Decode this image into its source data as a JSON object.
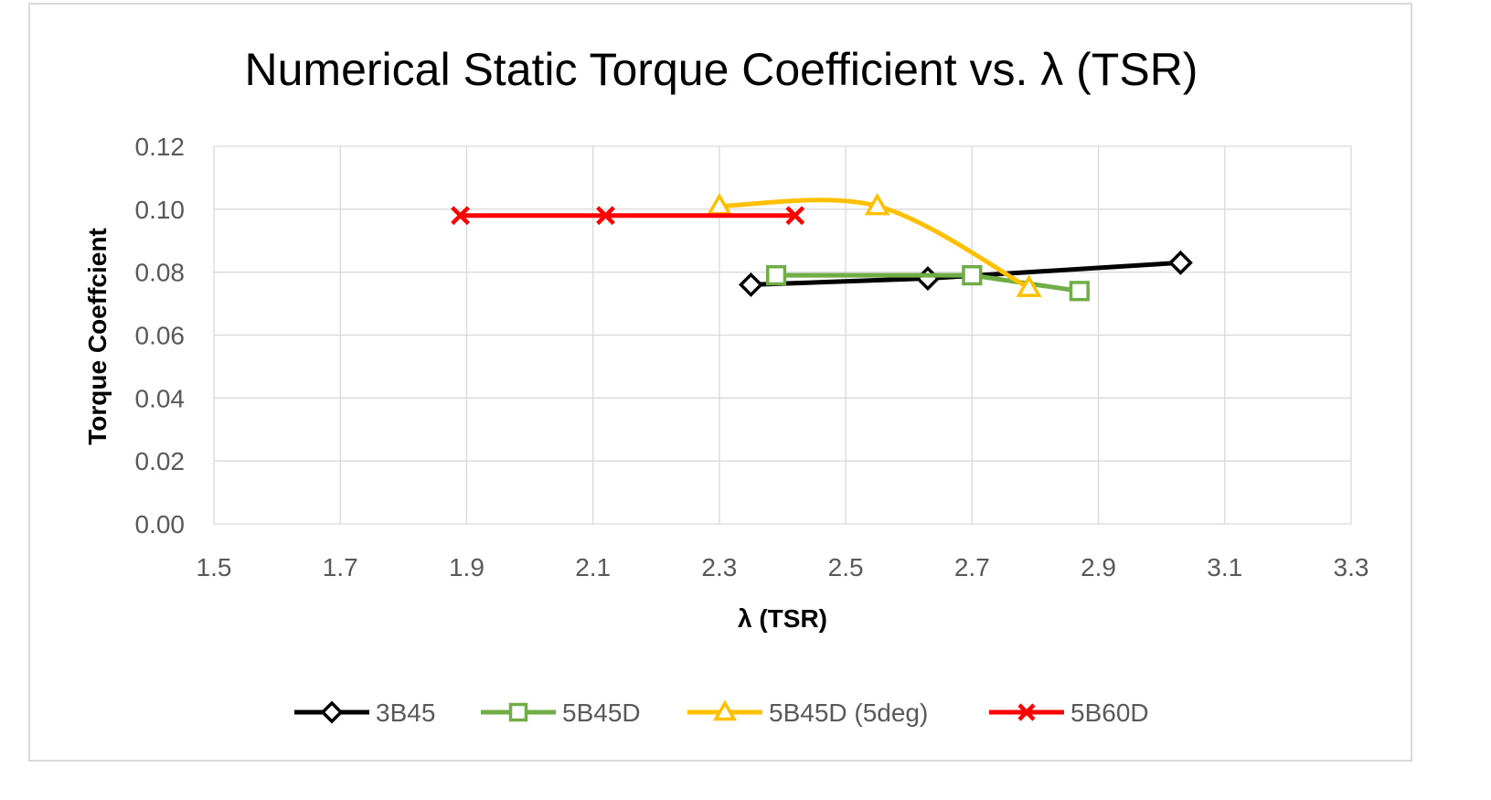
{
  "chart_data": {
    "type": "scatter",
    "title": "Numerical Static Torque Coefficient vs. λ (TSR)",
    "xlabel": "λ (TSR)",
    "ylabel": "Torque Coeffcient",
    "xlim": [
      1.5,
      3.3
    ],
    "ylim": [
      0,
      0.12
    ],
    "xticks": [
      1.5,
      1.7,
      1.9,
      2.1,
      2.3,
      2.5,
      2.7,
      2.9,
      3.1,
      3.3
    ],
    "xtick_labels": [
      "1.5",
      "1.7",
      "1.9",
      "2.1",
      "2.3",
      "2.5",
      "2.7",
      "2.9",
      "3.1",
      "3.3"
    ],
    "yticks": [
      0,
      0.02,
      0.04,
      0.06,
      0.08,
      0.1,
      0.12
    ],
    "ytick_labels": [
      "0.00",
      "0.02",
      "0.04",
      "0.06",
      "0.08",
      "0.10",
      "0.12"
    ],
    "grid": true,
    "legend_position": "bottom",
    "series": [
      {
        "name": "3B45",
        "color": "#000000",
        "marker": "diamond",
        "smooth": false,
        "x": [
          2.35,
          2.63,
          3.03
        ],
        "y": [
          0.076,
          0.078,
          0.083
        ]
      },
      {
        "name": "5B45D",
        "color": "#70ad47",
        "marker": "square",
        "smooth": false,
        "x": [
          2.39,
          2.7,
          2.87
        ],
        "y": [
          0.079,
          0.079,
          0.074
        ]
      },
      {
        "name": "5B45D (5deg)",
        "color": "#ffc000",
        "marker": "triangle",
        "smooth": true,
        "x": [
          2.3,
          2.55,
          2.79
        ],
        "y": [
          0.101,
          0.101,
          0.075
        ]
      },
      {
        "name": "5B60D",
        "color": "#ff0000",
        "marker": "x",
        "smooth": false,
        "x": [
          1.89,
          2.12,
          2.42
        ],
        "y": [
          0.098,
          0.098,
          0.098
        ]
      }
    ]
  }
}
